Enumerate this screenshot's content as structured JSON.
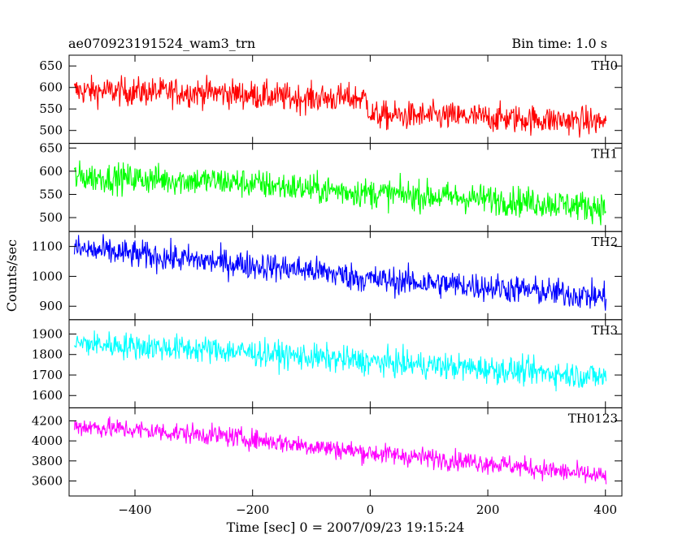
{
  "header": {
    "title": "ae070923191524_wam3_trn",
    "bin_time": "Bin time: 1.0 s"
  },
  "chart_data": {
    "type": "line",
    "title": "ae070923191524_wam3_trn",
    "subtitle": "Bin time: 1.0 s",
    "xlabel": "Time [sec] 0 = 2007/09/23 19:15:24",
    "ylabel": "Counts/sec",
    "xlim": [
      -512,
      428
    ],
    "xticks": [
      -400,
      -200,
      0,
      200,
      400
    ],
    "x_range": [
      -503,
      401
    ],
    "panels": [
      {
        "name": "TH0",
        "color": "#ff0000",
        "ylim": [
          470,
          675
        ],
        "yticks": [
          500,
          550,
          600,
          650
        ],
        "trend": [
          [
            -503,
            592
          ],
          [
            -260,
            588
          ],
          [
            -120,
            575
          ],
          [
            -8,
            575
          ],
          [
            2,
            535
          ],
          [
            150,
            532
          ],
          [
            401,
            520
          ]
        ],
        "noise": 28
      },
      {
        "name": "TH1",
        "color": "#00ff00",
        "ylim": [
          470,
          660
        ],
        "yticks": [
          500,
          550,
          600,
          650
        ],
        "trend": [
          [
            -503,
            588
          ],
          [
            -250,
            578
          ],
          [
            -100,
            562
          ],
          [
            0,
            553
          ],
          [
            200,
            540
          ],
          [
            401,
            522
          ]
        ],
        "noise": 27
      },
      {
        "name": "TH2",
        "color": "#0000ff",
        "ylim": [
          855,
          1150
        ],
        "yticks": [
          900,
          1000,
          1100
        ],
        "trend": [
          [
            -503,
            1092
          ],
          [
            -300,
            1055
          ],
          [
            -100,
            1020
          ],
          [
            0,
            990
          ],
          [
            200,
            965
          ],
          [
            401,
            930
          ]
        ],
        "noise": 40
      },
      {
        "name": "TH3",
        "color": "#00ffff",
        "ylim": [
          1540,
          1970
        ],
        "yticks": [
          1600,
          1700,
          1800,
          1900
        ],
        "trend": [
          [
            -503,
            1855
          ],
          [
            -250,
            1820
          ],
          [
            0,
            1765
          ],
          [
            200,
            1730
          ],
          [
            401,
            1690
          ]
        ],
        "noise": 55
      },
      {
        "name": "TH0123",
        "color": "#ff00ff",
        "ylim": [
          3450,
          4330
        ],
        "yticks": [
          3600,
          3800,
          4000,
          4200
        ],
        "trend": [
          [
            -503,
            4150
          ],
          [
            -250,
            4050
          ],
          [
            0,
            3880
          ],
          [
            200,
            3780
          ],
          [
            401,
            3640
          ]
        ],
        "noise": 85
      }
    ]
  }
}
